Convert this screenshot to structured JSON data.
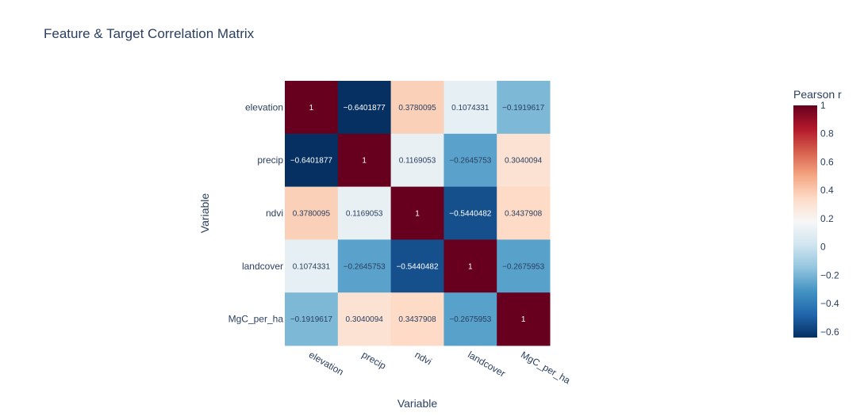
{
  "chart_data": {
    "type": "heatmap",
    "title": "Feature & Target Correlation Matrix",
    "xlabel": "Variable",
    "ylabel": "Variable",
    "x_categories": [
      "elevation",
      "precip",
      "ndvi",
      "landcover",
      "MgC_per_ha"
    ],
    "y_categories": [
      "elevation",
      "precip",
      "ndvi",
      "landcover",
      "MgC_per_ha"
    ],
    "z": [
      [
        1,
        -0.6401877,
        0.3780095,
        0.1074331,
        -0.1919617
      ],
      [
        -0.6401877,
        1,
        0.1169053,
        -0.2645753,
        0.3040094
      ],
      [
        0.3780095,
        0.1169053,
        1,
        -0.5440482,
        0.3437908
      ],
      [
        0.1074331,
        -0.2645753,
        -0.5440482,
        1,
        -0.2675953
      ],
      [
        -0.1919617,
        0.3040094,
        0.3437908,
        -0.2675953,
        1
      ]
    ],
    "text": [
      [
        "1",
        "−0.6401877",
        "0.3780095",
        "0.1074331",
        "−0.1919617"
      ],
      [
        "−0.6401877",
        "1",
        "0.1169053",
        "−0.2645753",
        "0.3040094"
      ],
      [
        "0.3780095",
        "0.1169053",
        "1",
        "−0.5440482",
        "0.3437908"
      ],
      [
        "0.1074331",
        "−0.2645753",
        "−0.5440482",
        "1",
        "−0.2675953"
      ],
      [
        "−0.1919617",
        "0.3040094",
        "0.3437908",
        "−0.2675953",
        "1"
      ]
    ],
    "zrange": [
      -0.6401877,
      1
    ],
    "colorscale": "RdBu",
    "colorbar": {
      "title": "Pearson r",
      "ticks": [
        1,
        0.8,
        0.6,
        0.4,
        0.2,
        0,
        -0.2,
        -0.4,
        -0.6
      ],
      "tick_labels": [
        "1",
        "0.8",
        "0.6",
        "0.4",
        "0.2",
        "0",
        "−0.2",
        "−0.4",
        "−0.6"
      ]
    },
    "grid": false
  }
}
